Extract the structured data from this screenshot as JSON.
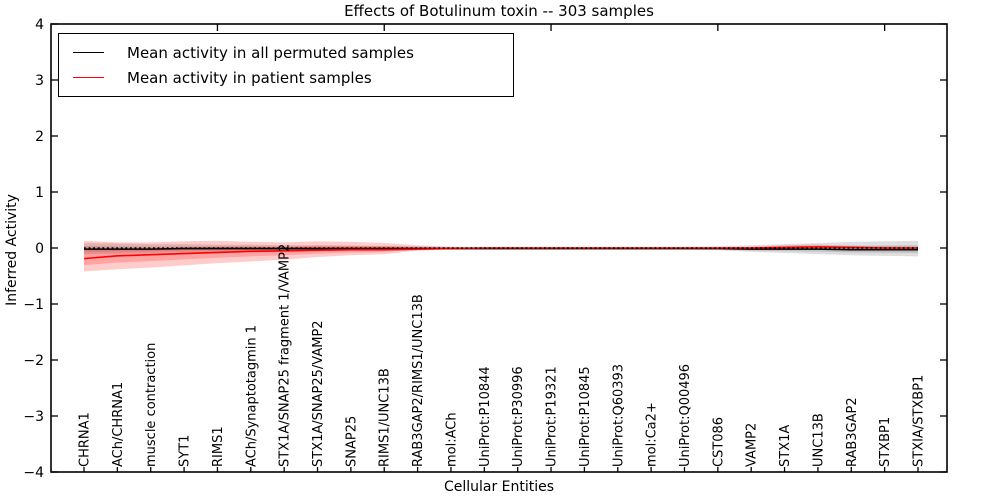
{
  "chart_data": {
    "type": "line",
    "title": "Effects of Botulinum toxin -- 303 samples",
    "xlabel": "Cellular Entities",
    "ylabel": "Inferred Activity",
    "ylim": [
      -4,
      4
    ],
    "yticks": [
      4,
      3,
      2,
      1,
      0,
      -1,
      -2,
      -3,
      -4
    ],
    "top_tick_indices": [
      4,
      9,
      14,
      19,
      24
    ],
    "grid": false,
    "legend": {
      "position": "upper left",
      "entries": [
        {
          "label": "Mean activity in all permuted samples",
          "color": "#000000"
        },
        {
          "label": "Mean activity in patient samples",
          "color": "#ff0000"
        }
      ]
    },
    "zero_reference_line": {
      "y": 0,
      "style": "dotted",
      "color": "#000000"
    },
    "categories": [
      "CHRNA1",
      "ACh/CHRNA1",
      "muscle contraction",
      "SYT1",
      "RIMS1",
      "ACh/Synaptotagmin 1",
      "STX1A/SNAP25 fragment 1/VAMP2",
      "STX1A/SNAP25/VAMP2",
      "SNAP25",
      "RIMS1/UNC13B",
      "RAB3GAP2/RIMS1/UNC13B",
      "mol:ACh",
      "UniProt:P10844",
      "UniProt:P30996",
      "UniProt:P19321",
      "UniProt:P10845",
      "UniProt:Q60393",
      "mol:Ca2+",
      "UniProt:Q00496",
      "CST086",
      "VAMP2",
      "STX1A",
      "UNC13B",
      "RAB3GAP2",
      "STXBP1",
      "STXIA/STXBP1"
    ],
    "series": [
      {
        "name": "Mean activity in all permuted samples",
        "color": "#000000",
        "band_color": "#000000",
        "band_opacity": 0.13,
        "mean": [
          -0.02,
          -0.02,
          -0.02,
          -0.01,
          -0.01,
          -0.01,
          -0.01,
          -0.01,
          -0.01,
          -0.01,
          -0.01,
          -0.01,
          -0.01,
          -0.01,
          -0.01,
          -0.01,
          -0.01,
          -0.01,
          -0.01,
          -0.01,
          -0.02,
          -0.02,
          -0.02,
          -0.03,
          -0.03,
          -0.03
        ],
        "band_hi": [
          0.09,
          0.08,
          0.07,
          0.07,
          0.06,
          0.06,
          0.05,
          0.05,
          0.04,
          0.04,
          0.03,
          0.02,
          0.02,
          0.02,
          0.02,
          0.02,
          0.02,
          0.02,
          0.02,
          0.03,
          0.05,
          0.07,
          0.09,
          0.11,
          0.12,
          0.13
        ],
        "band_lo": [
          -0.11,
          -0.1,
          -0.09,
          -0.08,
          -0.08,
          -0.07,
          -0.07,
          -0.06,
          -0.05,
          -0.05,
          -0.04,
          -0.03,
          -0.03,
          -0.03,
          -0.03,
          -0.03,
          -0.03,
          -0.03,
          -0.03,
          -0.04,
          -0.07,
          -0.09,
          -0.11,
          -0.13,
          -0.14,
          -0.15
        ]
      },
      {
        "name": "Mean activity in patient samples",
        "color": "#ff0000",
        "band_color": "#ff0000",
        "band_opacity": 0.2,
        "mean": [
          -0.19,
          -0.14,
          -0.12,
          -0.1,
          -0.08,
          -0.06,
          -0.05,
          -0.04,
          -0.03,
          -0.03,
          -0.02,
          -0.01,
          0.0,
          0.0,
          0.0,
          0.0,
          0.0,
          0.0,
          0.0,
          0.0,
          0.0,
          0.01,
          0.02,
          0.01,
          0.0,
          0.0
        ],
        "band_hi": [
          0.13,
          0.1,
          0.1,
          0.12,
          0.13,
          0.11,
          0.1,
          0.12,
          0.11,
          0.09,
          0.05,
          0.02,
          0.01,
          0.01,
          0.01,
          0.01,
          0.01,
          0.01,
          0.01,
          0.01,
          0.02,
          0.05,
          0.06,
          0.04,
          0.03,
          0.02
        ],
        "band_lo": [
          -0.42,
          -0.38,
          -0.35,
          -0.31,
          -0.27,
          -0.24,
          -0.21,
          -0.16,
          -0.13,
          -0.11,
          -0.05,
          -0.02,
          -0.01,
          -0.01,
          -0.01,
          -0.01,
          -0.01,
          -0.01,
          -0.01,
          -0.01,
          -0.02,
          -0.03,
          -0.03,
          -0.02,
          -0.02,
          -0.02
        ]
      }
    ]
  }
}
